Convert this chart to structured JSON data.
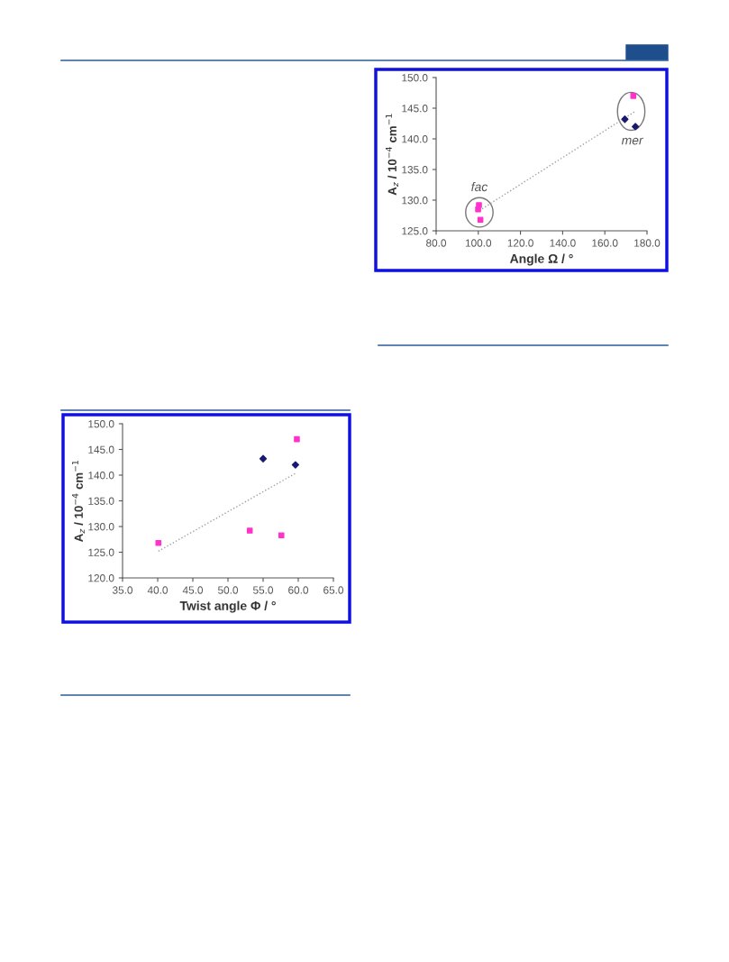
{
  "chart_data": [
    {
      "type": "scatter",
      "xlabel": "Twist angle Φ / °",
      "ylabel": "A$_{z}$ / 10$^{−4}$ cm$^{−1}$",
      "xlim": [
        35,
        65
      ],
      "xticks": [
        {
          "value": 35,
          "label": "35.0"
        },
        {
          "value": 40,
          "label": "40.0"
        },
        {
          "value": 45,
          "label": "45.0"
        },
        {
          "value": 50,
          "label": "50.0"
        },
        {
          "value": 55,
          "label": "55.0"
        },
        {
          "value": 60,
          "label": "60.0"
        },
        {
          "value": 65,
          "label": "65.0"
        }
      ],
      "ylim": [
        120,
        150
      ],
      "yticks": [
        {
          "value": 120,
          "label": "120.0"
        },
        {
          "value": 125,
          "label": "125.0"
        },
        {
          "value": 130,
          "label": "130.0"
        },
        {
          "value": 135,
          "label": "135.0"
        },
        {
          "value": 140,
          "label": "140.0"
        },
        {
          "value": 145,
          "label": "145.0"
        },
        {
          "value": 150,
          "label": "150.0"
        }
      ],
      "grid": false,
      "legend": false,
      "series": [
        {
          "marker": "square",
          "color": "#ff33cc",
          "x": [
            40.1,
            53.1,
            57.6,
            59.8
          ],
          "values": [
            126.8,
            129.2,
            128.3,
            147.0
          ]
        },
        {
          "marker": "diamond",
          "color": "#1a1a6e",
          "x": [
            55.0,
            59.6
          ],
          "values": [
            143.2,
            142.0
          ]
        },
        {
          "type": "line",
          "marker": "none",
          "line_style": "dotted",
          "color": "#a0a0a0",
          "x": [
            40.1,
            59.8
          ],
          "values": [
            125.2,
            140.5
          ]
        }
      ]
    },
    {
      "type": "scatter",
      "xlabel": "Angle Ω / °",
      "ylabel": "A$_{z}$ / 10$^{−4}$ cm$^{−1}$",
      "xlim": [
        80,
        180
      ],
      "xticks": [
        {
          "value": 80,
          "label": "80.0"
        },
        {
          "value": 100,
          "label": "100.0"
        },
        {
          "value": 120,
          "label": "120.0"
        },
        {
          "value": 140,
          "label": "140.0"
        },
        {
          "value": 160,
          "label": "160.0"
        },
        {
          "value": 180,
          "label": "180.0"
        }
      ],
      "ylim": [
        125,
        150
      ],
      "yticks": [
        {
          "value": 125,
          "label": "125.0"
        },
        {
          "value": 130,
          "label": "130.0"
        },
        {
          "value": 135,
          "label": "135.0"
        },
        {
          "value": 140,
          "label": "140.0"
        },
        {
          "value": 145,
          "label": "145.0"
        },
        {
          "value": 150,
          "label": "150.0"
        }
      ],
      "grid": false,
      "legend": false,
      "series": [
        {
          "marker": "square",
          "color": "#ff33cc",
          "x": [
            100.3,
            99.9,
            101.0,
            173.5
          ],
          "values": [
            129.2,
            128.5,
            126.8,
            147.0
          ]
        },
        {
          "marker": "diamond",
          "color": "#1a1a6e",
          "x": [
            169.5,
            174.5
          ],
          "values": [
            143.2,
            142.0
          ]
        },
        {
          "type": "line",
          "marker": "none",
          "line_style": "dotted",
          "color": "#a0a0a0",
          "x": [
            100.5,
            174.0
          ],
          "values": [
            128.3,
            144.4
          ]
        }
      ],
      "annotations": [
        "fac",
        "mer"
      ]
    }
  ]
}
